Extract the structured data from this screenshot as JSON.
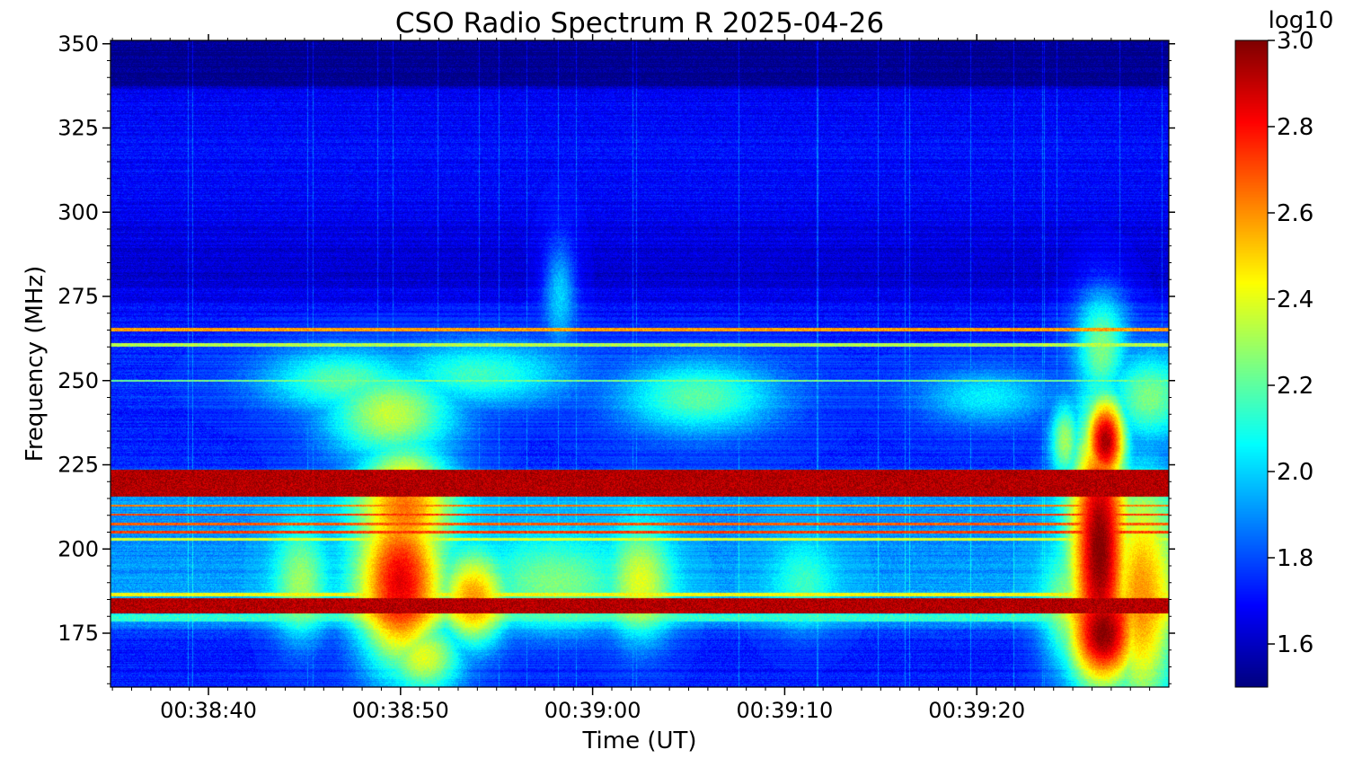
{
  "chart_data": {
    "type": "heatmap",
    "title": "CSO Radio Spectrum R 2025-04-26",
    "xlabel": "Time (UT)",
    "ylabel": "Frequency (MHz)",
    "x_tick_labels": [
      "00:38:40",
      "00:38:50",
      "00:39:00",
      "00:39:10",
      "00:39:20"
    ],
    "x_tick_seconds": [
      40,
      50,
      60,
      70,
      80
    ],
    "xlim_seconds": [
      34.9,
      90.0
    ],
    "y_ticks": [
      175,
      200,
      225,
      250,
      275,
      300,
      325,
      350
    ],
    "ylim": [
      159,
      351
    ],
    "colorbar": {
      "label": "log10",
      "ticks": [
        1.6,
        1.8,
        2.0,
        2.2,
        2.4,
        2.6,
        2.8,
        3.0
      ],
      "vmin": 1.5,
      "vmax": 3.0,
      "colormap": "jet"
    },
    "frequency_band_levels": [
      {
        "f": 351,
        "v": 1.52
      },
      {
        "f": 338,
        "v": 1.52
      },
      {
        "f": 336,
        "v": 1.68
      },
      {
        "f": 320,
        "v": 1.7
      },
      {
        "f": 300,
        "v": 1.68
      },
      {
        "f": 290,
        "v": 1.64
      },
      {
        "f": 283,
        "v": 1.6
      },
      {
        "f": 276,
        "v": 1.66
      },
      {
        "f": 268,
        "v": 1.72
      },
      {
        "f": 256,
        "v": 1.74
      },
      {
        "f": 245,
        "v": 1.76
      },
      {
        "f": 235,
        "v": 1.72
      },
      {
        "f": 226,
        "v": 1.74
      },
      {
        "f": 215,
        "v": 1.92
      },
      {
        "f": 200,
        "v": 1.9
      },
      {
        "f": 190,
        "v": 1.92
      },
      {
        "f": 180,
        "v": 2.05
      },
      {
        "f": 176,
        "v": 1.8
      },
      {
        "f": 170,
        "v": 1.72
      },
      {
        "f": 164,
        "v": 1.72
      },
      {
        "f": 159,
        "v": 1.72
      }
    ],
    "rfi_lines": [
      {
        "f0": 215.5,
        "f1": 223.5,
        "v": 3.0
      },
      {
        "f0": 181.0,
        "f1": 185.5,
        "v": 3.0
      },
      {
        "f0": 212.5,
        "f1": 213.2,
        "v": 2.7
      },
      {
        "f0": 209.8,
        "f1": 210.5,
        "v": 2.8
      },
      {
        "f0": 207.0,
        "f1": 207.8,
        "v": 2.75
      },
      {
        "f0": 204.5,
        "f1": 205.4,
        "v": 2.8
      },
      {
        "f0": 202.5,
        "f1": 203.3,
        "v": 2.45
      },
      {
        "f0": 186.0,
        "f1": 187.0,
        "v": 2.5
      },
      {
        "f0": 178.5,
        "f1": 180.5,
        "v": 2.2
      },
      {
        "f0": 264.6,
        "f1": 265.6,
        "v": 2.65
      },
      {
        "f0": 260.0,
        "f1": 261.0,
        "v": 2.4
      },
      {
        "f0": 249.6,
        "f1": 250.2,
        "v": 2.3
      }
    ],
    "bursts": [
      {
        "t": 50.0,
        "f": 190,
        "dt": 1.6,
        "df": 18,
        "v": 2.85
      },
      {
        "t": 50.2,
        "f": 212,
        "dt": 1.8,
        "df": 14,
        "v": 2.65
      },
      {
        "t": 49.5,
        "f": 240,
        "dt": 2.5,
        "df": 10,
        "v": 2.35
      },
      {
        "t": 53.8,
        "f": 185,
        "dt": 1.2,
        "df": 10,
        "v": 2.6
      },
      {
        "t": 44.8,
        "f": 190,
        "dt": 1.0,
        "df": 12,
        "v": 2.3
      },
      {
        "t": 51.2,
        "f": 168,
        "dt": 1.5,
        "df": 8,
        "v": 2.4
      },
      {
        "t": 62.5,
        "f": 190,
        "dt": 1.2,
        "df": 12,
        "v": 2.4
      },
      {
        "t": 58.0,
        "f": 190,
        "dt": 2.8,
        "df": 10,
        "v": 2.25
      },
      {
        "t": 65.5,
        "f": 245,
        "dt": 3.0,
        "df": 8,
        "v": 2.2
      },
      {
        "t": 54.0,
        "f": 252,
        "dt": 3.5,
        "df": 7,
        "v": 2.15
      },
      {
        "t": 47.0,
        "f": 250,
        "dt": 3.0,
        "df": 7,
        "v": 2.2
      },
      {
        "t": 71.0,
        "f": 190,
        "dt": 1.2,
        "df": 9,
        "v": 2.15
      },
      {
        "t": 80.5,
        "f": 245,
        "dt": 2.5,
        "df": 6,
        "v": 2.05
      },
      {
        "t": 86.7,
        "f": 232,
        "dt": 0.8,
        "df": 10,
        "v": 2.95
      },
      {
        "t": 86.4,
        "f": 200,
        "dt": 1.1,
        "df": 30,
        "v": 3.0
      },
      {
        "t": 86.6,
        "f": 175,
        "dt": 1.4,
        "df": 12,
        "v": 3.0
      },
      {
        "t": 88.6,
        "f": 185,
        "dt": 1.4,
        "df": 26,
        "v": 2.6
      },
      {
        "t": 89.0,
        "f": 245,
        "dt": 1.6,
        "df": 10,
        "v": 2.25
      },
      {
        "t": 84.6,
        "f": 232,
        "dt": 0.6,
        "df": 9,
        "v": 2.3
      },
      {
        "t": 84.8,
        "f": 182,
        "dt": 1.0,
        "df": 14,
        "v": 2.3
      },
      {
        "t": 86.5,
        "f": 260,
        "dt": 1.0,
        "df": 12,
        "v": 2.25
      },
      {
        "t": 58.3,
        "f": 275,
        "dt": 0.6,
        "df": 12,
        "v": 2.0
      }
    ]
  }
}
